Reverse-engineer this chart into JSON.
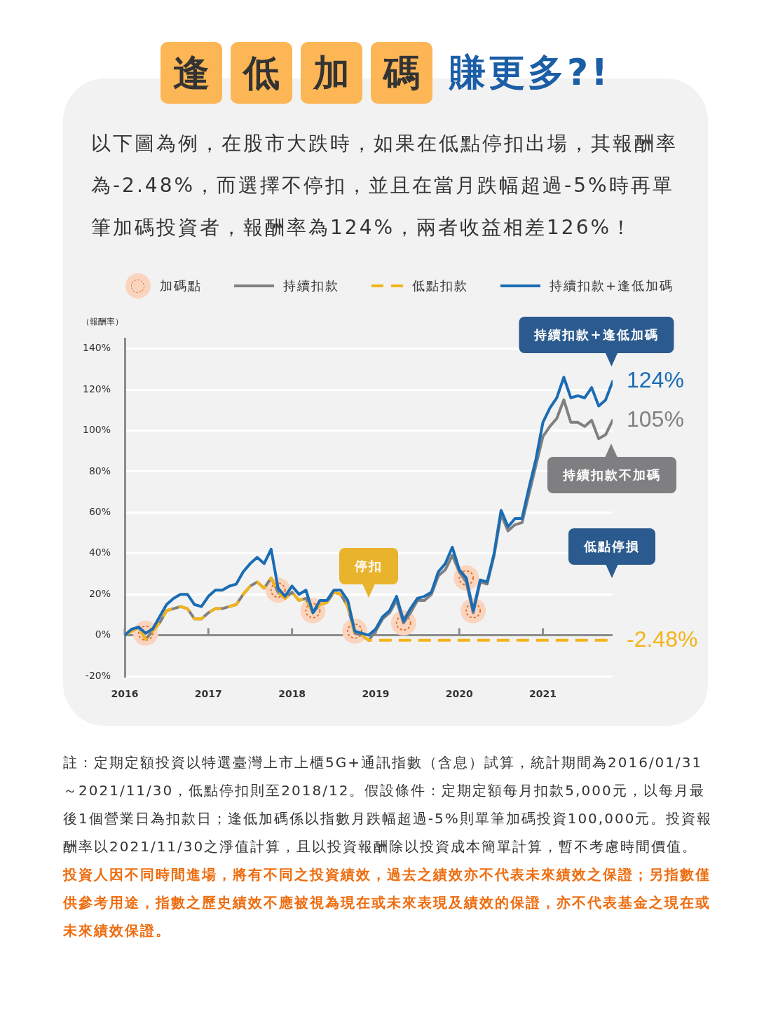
{
  "chart_data": {
    "type": "line",
    "title": "逢低加碼 賺更多?!",
    "subtitle": "以下圖為例，在股市大跌時，如果在低點停扣出場，其報酬率為-2.48%，而選擇不停扣，並且在當月跌幅超過-5%時再單筆加碼投資者，報酬率為124%，兩者收益相差126%！",
    "ylabel": "（報酬率）",
    "x": [
      "2016-01",
      "2016-02",
      "2016-03",
      "2016-04",
      "2016-05",
      "2016-06",
      "2016-07",
      "2016-08",
      "2016-09",
      "2016-10",
      "2016-11",
      "2016-12",
      "2017-01",
      "2017-02",
      "2017-03",
      "2017-04",
      "2017-05",
      "2017-06",
      "2017-07",
      "2017-08",
      "2017-09",
      "2017-10",
      "2017-11",
      "2017-12",
      "2018-01",
      "2018-02",
      "2018-03",
      "2018-04",
      "2018-05",
      "2018-06",
      "2018-07",
      "2018-08",
      "2018-09",
      "2018-10",
      "2018-11",
      "2018-12",
      "2019-01",
      "2019-02",
      "2019-03",
      "2019-04",
      "2019-05",
      "2019-06",
      "2019-07",
      "2019-08",
      "2019-09",
      "2019-10",
      "2019-11",
      "2019-12",
      "2020-01",
      "2020-02",
      "2020-03",
      "2020-04",
      "2020-05",
      "2020-06",
      "2020-07",
      "2020-08",
      "2020-09",
      "2020-10",
      "2020-11",
      "2020-12",
      "2021-01",
      "2021-02",
      "2021-03",
      "2021-04",
      "2021-05",
      "2021-06",
      "2021-07",
      "2021-08",
      "2021-09",
      "2021-10",
      "2021-11"
    ],
    "xlim": [
      "2016-01",
      "2021-11"
    ],
    "xticks": [
      {
        "value": "2016-01",
        "label": "2016"
      },
      {
        "value": "2017-01",
        "label": "2017"
      },
      {
        "value": "2018-01",
        "label": "2018"
      },
      {
        "value": "2019-01",
        "label": "2019"
      },
      {
        "value": "2020-01",
        "label": "2020"
      },
      {
        "value": "2021-01",
        "label": "2021"
      }
    ],
    "ylim": [
      -20,
      145
    ],
    "yticks": [
      {
        "value": -20,
        "label": "-20%"
      },
      {
        "value": 0,
        "label": "0%"
      },
      {
        "value": 20,
        "label": "20%"
      },
      {
        "value": 40,
        "label": "40%"
      },
      {
        "value": 60,
        "label": "60%"
      },
      {
        "value": 80,
        "label": "80%"
      },
      {
        "value": 100,
        "label": "100%"
      },
      {
        "value": 120,
        "label": "120%"
      },
      {
        "value": 140,
        "label": "140%"
      }
    ],
    "grid": "y",
    "legend": "top",
    "marker": "none",
    "series": [
      {
        "name": "加碼點",
        "type": "scatter",
        "marker": "circle",
        "color": "#f9d5c0",
        "x": [
          "2016-04",
          "2017-11",
          "2018-04",
          "2018-10",
          "2019-05",
          "2020-02",
          "2020-03"
        ],
        "values": [
          1,
          22,
          12,
          2,
          6,
          28,
          12
        ]
      },
      {
        "name": "持續扣款",
        "color": "#808080",
        "values": [
          0,
          2,
          4,
          -2,
          2,
          6,
          12,
          13,
          14,
          13,
          8,
          8,
          11,
          13,
          13,
          14,
          15,
          20,
          24,
          26,
          23,
          28,
          21,
          18,
          21,
          17,
          18,
          11,
          15,
          16,
          21,
          20,
          14,
          1,
          0,
          -2.5,
          2,
          8,
          11,
          17,
          6,
          11,
          17,
          17,
          20,
          29,
          32,
          39,
          31,
          26,
          11,
          26,
          25,
          39,
          59,
          51,
          54,
          55,
          69,
          83,
          97,
          102,
          106,
          115,
          104,
          104,
          102,
          105,
          96,
          98,
          105
        ],
        "value_labels": [
          null,
          null,
          null,
          null,
          null,
          null,
          null,
          null,
          null,
          null,
          null,
          null,
          null,
          null,
          null,
          null,
          null,
          null,
          null,
          null,
          null,
          null,
          null,
          null,
          null,
          null,
          null,
          null,
          null,
          null,
          null,
          null,
          null,
          null,
          null,
          null,
          null,
          null,
          null,
          null,
          null,
          null,
          null,
          null,
          null,
          null,
          null,
          null,
          null,
          null,
          null,
          null,
          null,
          null,
          null,
          null,
          null,
          null,
          null,
          null,
          null,
          null,
          null,
          null,
          null,
          null,
          null,
          null,
          null,
          null,
          "105%"
        ]
      },
      {
        "name": "低點扣款",
        "color": "#f3b41b",
        "line_style": "dashed",
        "values": [
          0,
          2,
          4,
          -2,
          2,
          6,
          12,
          13,
          14,
          13,
          8,
          8,
          11,
          13,
          13,
          14,
          15,
          20,
          24,
          26,
          23,
          28,
          21,
          18,
          21,
          17,
          18,
          11,
          15,
          16,
          21,
          20,
          14,
          1,
          0,
          -2.48,
          -2.48,
          -2.48,
          -2.48,
          -2.48,
          -2.48,
          -2.48,
          -2.48,
          -2.48,
          -2.48,
          -2.48,
          -2.48,
          -2.48,
          -2.48,
          -2.48,
          -2.48,
          -2.48,
          -2.48,
          -2.48,
          -2.48,
          -2.48,
          -2.48,
          -2.48,
          -2.48,
          -2.48,
          -2.48,
          -2.48,
          -2.48,
          -2.48,
          -2.48,
          -2.48,
          -2.48,
          -2.48,
          -2.48,
          -2.48,
          -2.48
        ],
        "value_labels": [
          null,
          null,
          null,
          null,
          null,
          null,
          null,
          null,
          null,
          null,
          null,
          null,
          null,
          null,
          null,
          null,
          null,
          null,
          null,
          null,
          null,
          null,
          null,
          null,
          null,
          null,
          null,
          null,
          null,
          null,
          null,
          null,
          null,
          null,
          null,
          null,
          null,
          null,
          null,
          null,
          null,
          null,
          null,
          null,
          null,
          null,
          null,
          null,
          null,
          null,
          null,
          null,
          null,
          null,
          null,
          null,
          null,
          null,
          null,
          null,
          null,
          null,
          null,
          null,
          null,
          null,
          null,
          null,
          null,
          null,
          "-2.48%"
        ]
      },
      {
        "name": "持續扣款+逢低加碼",
        "color": "#1b6cb4",
        "values": [
          0,
          3,
          4,
          1,
          3,
          9,
          15,
          18,
          20,
          20,
          15,
          14,
          19,
          22,
          22,
          24,
          25,
          31,
          35,
          38,
          35,
          42,
          23,
          19,
          24,
          20,
          22,
          11,
          17,
          17,
          22,
          22,
          17,
          2,
          1,
          0,
          3,
          9,
          12,
          19,
          7,
          13,
          18,
          19,
          21,
          31,
          35,
          43,
          32,
          28,
          12,
          27,
          26,
          40,
          61,
          53,
          57,
          57,
          72,
          86,
          104,
          111,
          116,
          126,
          116,
          117,
          116,
          121,
          112,
          115,
          124
        ],
        "value_labels": [
          null,
          null,
          null,
          null,
          null,
          null,
          null,
          null,
          null,
          null,
          null,
          null,
          null,
          null,
          null,
          null,
          null,
          null,
          null,
          null,
          null,
          null,
          null,
          null,
          null,
          null,
          null,
          null,
          null,
          null,
          null,
          null,
          null,
          null,
          null,
          null,
          null,
          null,
          null,
          null,
          null,
          null,
          null,
          null,
          null,
          null,
          null,
          null,
          null,
          null,
          null,
          null,
          null,
          null,
          null,
          null,
          null,
          null,
          null,
          null,
          null,
          null,
          null,
          null,
          null,
          null,
          null,
          null,
          null,
          null,
          "124%"
        ]
      }
    ],
    "annotations": [
      "持續扣款+逢低加碼",
      "持續扣款不加碼",
      "低點停損",
      "停扣",
      "註：定期定額投資以特選臺灣上市上櫃5G+通訊指數（含息）試算，統計期間為2016/01/31～2021/11/30，低點停扣則至2018/12。假設條件：定期定額每月扣款5,000元，以每月最後1個營業日為扣款日；逢低加碼係以指數月跌幅超過-5%則單筆加碼投資100,000元。投資報酬率以2021/11/30之淨值計算，且以投資報酬除以投資成本簡單計算，暫不考慮時間價值。",
      "投資人因不同時間進場，將有不同之投資績效，過去之績效亦不代表未來績效之保證；另指數僅供參考用途，指數之歷史績效不應被視為現在或未來表現及績效的保證，亦不代表基金之現在或未來績效保證。"
    ]
  }
}
